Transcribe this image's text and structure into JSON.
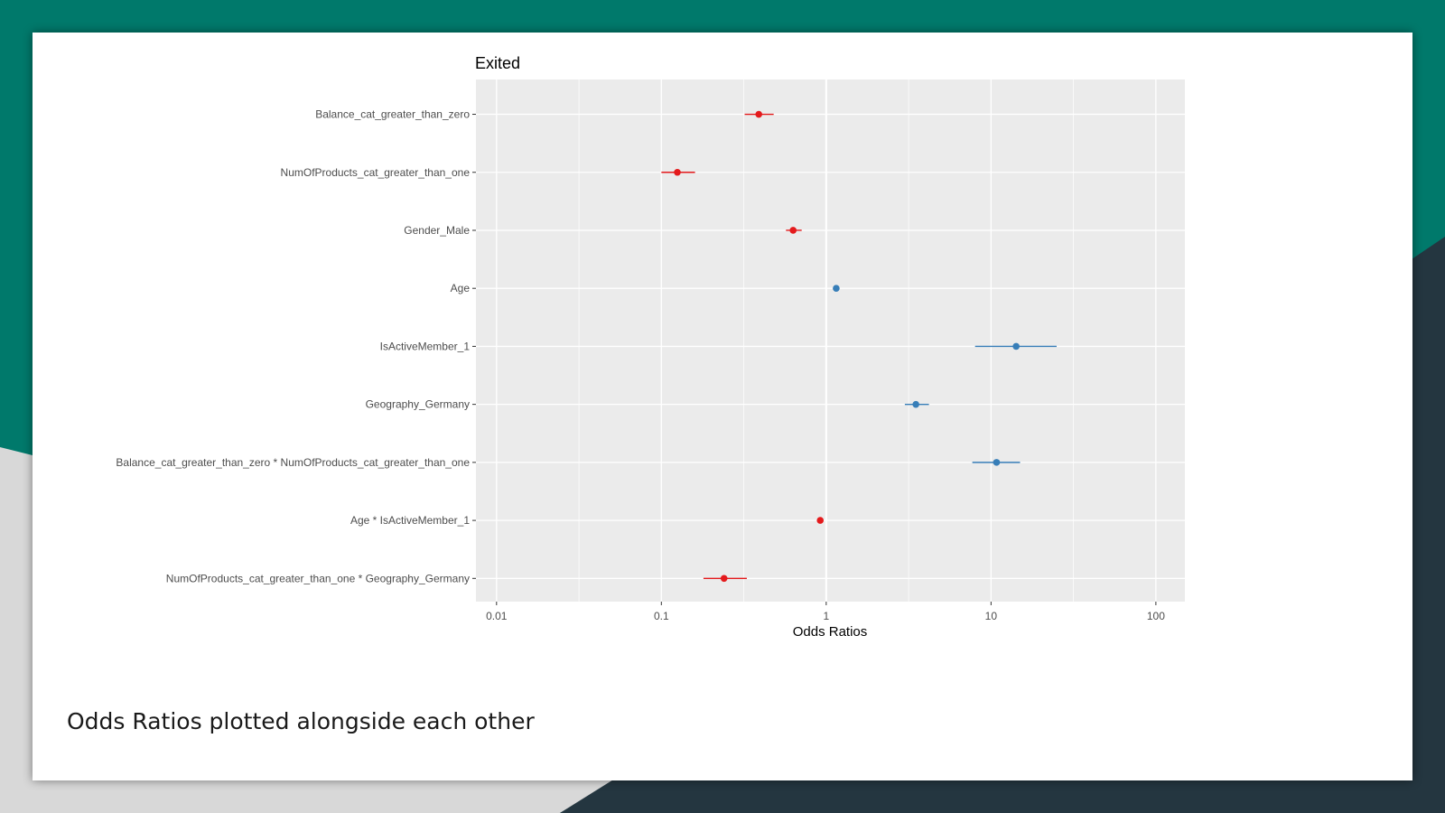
{
  "slide": {
    "caption": "Odds Ratios plotted alongside each other",
    "background_colors": {
      "teal": "#00796b",
      "dark": "#243640",
      "light": "#d8d8d8"
    }
  },
  "chart_data": {
    "type": "scatter",
    "title": "Exited",
    "xlabel": "Odds Ratios",
    "ylabel": "",
    "x_scale": "log",
    "xlim": [
      0.0075,
      150
    ],
    "x_ticks": [
      0.01,
      0.1,
      1,
      10,
      100
    ],
    "x_tick_labels": [
      "0.01",
      "0.1",
      "1",
      "10",
      "100"
    ],
    "reference_line": 1,
    "grid": true,
    "colors": {
      "negative": "#e41a1c",
      "positive": "#377eb8",
      "panel": "#ebebeb"
    },
    "terms": [
      {
        "label": "Balance_cat_greater_than_zero",
        "estimate": 0.39,
        "ci_low": 0.32,
        "ci_high": 0.48
      },
      {
        "label": "NumOfProducts_cat_greater_than_one",
        "estimate": 0.125,
        "ci_low": 0.1,
        "ci_high": 0.16
      },
      {
        "label": "Gender_Male",
        "estimate": 0.63,
        "ci_low": 0.57,
        "ci_high": 0.71
      },
      {
        "label": "Age",
        "estimate": 1.15,
        "ci_low": 1.12,
        "ci_high": 1.19
      },
      {
        "label": "IsActiveMember_1",
        "estimate": 14.2,
        "ci_low": 8,
        "ci_high": 25
      },
      {
        "label": "Geography_Germany",
        "estimate": 3.5,
        "ci_low": 3,
        "ci_high": 4.2
      },
      {
        "label": "Balance_cat_greater_than_zero * NumOfProducts_cat_greater_than_one",
        "estimate": 10.8,
        "ci_low": 7.7,
        "ci_high": 15
      },
      {
        "label": "Age * IsActiveMember_1",
        "estimate": 0.92,
        "ci_low": 0.9,
        "ci_high": 0.94
      },
      {
        "label": "NumOfProducts_cat_greater_than_one * Geography_Germany",
        "estimate": 0.24,
        "ci_low": 0.18,
        "ci_high": 0.33
      }
    ]
  }
}
